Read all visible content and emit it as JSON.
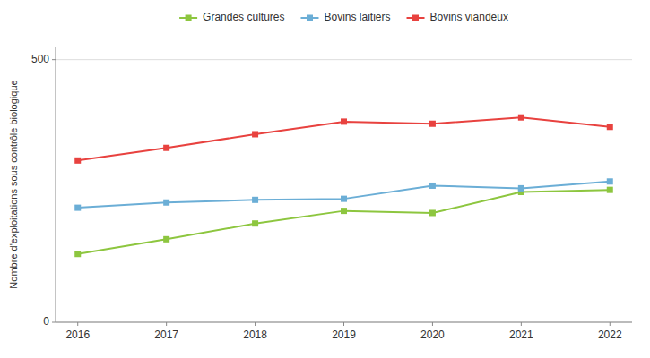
{
  "chart_data": {
    "type": "line",
    "x": [
      2016,
      2017,
      2018,
      2019,
      2020,
      2021,
      2022
    ],
    "xlim": [
      2015.75,
      2022.25
    ],
    "xticks": [
      2016,
      2017,
      2018,
      2019,
      2020,
      2021,
      2022
    ],
    "ylim": [
      0,
      525
    ],
    "yticks": [
      0,
      500
    ],
    "y_label": "Nombre d'exploitations sous contrôle biologique",
    "grid": "y",
    "legend": "top",
    "marker": "square",
    "series": [
      {
        "name": "Grandes cultures",
        "color": "#8dc63f",
        "values": [
          130,
          158,
          188,
          212,
          208,
          248,
          252
        ]
      },
      {
        "name": "Bovins laitiers",
        "color": "#6baed6",
        "values": [
          218,
          228,
          233,
          235,
          260,
          255,
          268
        ]
      },
      {
        "name": "Bovins viandeux",
        "color": "#e8423f",
        "values": [
          308,
          332,
          358,
          382,
          378,
          390,
          372
        ]
      }
    ]
  }
}
